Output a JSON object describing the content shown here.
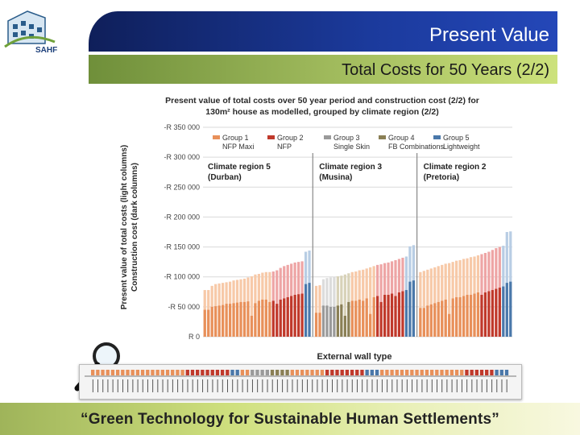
{
  "slide": {
    "title": "Present Value",
    "subtitle": "Total Costs for 50 Years (2/2)",
    "footer": "“Green Technology for Sustainable Human Settlements”",
    "logo_text": "SAHF"
  },
  "colors": {
    "group1_light": "#f7c9a8",
    "group1_dark": "#e8905a",
    "group2_light": "#eea5a5",
    "group2_dark": "#c0392b",
    "group3_light": "#dcdcdc",
    "group3_dark": "#9a9a9a",
    "group4_light": "#d8d2b8",
    "group4_dark": "#8a7f55",
    "group5_light": "#b8cde4",
    "group5_dark": "#4a78aa"
  },
  "chart_data": {
    "type": "bar",
    "title": "Present value of total costs over 50 year period and construction cost (2/2) for 130m² house as modelled, grouped by climate region (2/2)",
    "title_lines": [
      "Present value of total costs over 50 year period and construction cost (2/2) for",
      "130m² house as modelled, grouped by climate region (2/2)"
    ],
    "xlabel": "External wall type",
    "ylabel_lines": [
      "Present value of total costs (light columns)",
      "Construction cost (dark columns)"
    ],
    "ylim": [
      0,
      350000
    ],
    "yticks": [
      {
        "value": 0,
        "label": "R 0"
      },
      {
        "value": 50000,
        "label": "-R 50 000"
      },
      {
        "value": 100000,
        "label": "-R 100 000"
      },
      {
        "value": 150000,
        "label": "-R 150 000"
      },
      {
        "value": 200000,
        "label": "-R 200 000"
      },
      {
        "value": 250000,
        "label": "-R 250 000"
      },
      {
        "value": 300000,
        "label": "-R 300 000"
      },
      {
        "value": 350000,
        "label": "-R 350 000"
      }
    ],
    "grid": true,
    "legend_placement": "top-left",
    "legend": [
      {
        "group": 1,
        "name": "Group 1",
        "sub": "NFP Maxi"
      },
      {
        "group": 2,
        "name": "Group 2",
        "sub": "NFP"
      },
      {
        "group": 3,
        "name": "Group 3",
        "sub": "Single Skin"
      },
      {
        "group": 4,
        "name": "Group 4",
        "sub": "FB Combinations"
      },
      {
        "group": 5,
        "name": "Group 5",
        "sub": "Lightweight"
      }
    ],
    "regions": [
      {
        "name": "Climate region 5",
        "city": "(Durban)",
        "groups": [
          1,
          1,
          1,
          1,
          1,
          1,
          1,
          1,
          1,
          1,
          1,
          1,
          1,
          1,
          1,
          1,
          1,
          1,
          1,
          2,
          2,
          2,
          2,
          2,
          2,
          2,
          2,
          2,
          5,
          5
        ],
        "total": [
          78000,
          78000,
          85000,
          88000,
          89000,
          90000,
          91000,
          92000,
          94000,
          95000,
          96000,
          97000,
          99000,
          101000,
          104000,
          105000,
          107000,
          108000,
          108000,
          109000,
          111000,
          115000,
          118000,
          120000,
          122000,
          124000,
          125000,
          126000,
          142000,
          144000
        ],
        "construction": [
          45000,
          45000,
          50000,
          51000,
          52000,
          53000,
          55000,
          55000,
          56000,
          57000,
          58000,
          58000,
          59000,
          35000,
          56000,
          60000,
          62000,
          62000,
          58000,
          60000,
          55000,
          62000,
          64000,
          66000,
          68000,
          70000,
          71000,
          72000,
          88000,
          90000
        ]
      },
      {
        "name": "Climate region 3",
        "city": "(Musina)",
        "groups": [
          1,
          1,
          3,
          3,
          3,
          3,
          4,
          4,
          4,
          4,
          1,
          1,
          1,
          1,
          1,
          1,
          1,
          2,
          2,
          2,
          2,
          2,
          2,
          2,
          2,
          5,
          5,
          5
        ],
        "total": [
          85000,
          86000,
          96000,
          98000,
          99000,
          100000,
          101000,
          102000,
          104000,
          106000,
          108000,
          109000,
          111000,
          112000,
          114000,
          116000,
          118000,
          120000,
          121000,
          123000,
          124000,
          126000,
          128000,
          130000,
          132000,
          134000,
          151000,
          153000
        ],
        "construction": [
          40000,
          40000,
          52000,
          52000,
          50000,
          50000,
          52000,
          54000,
          35000,
          58000,
          60000,
          60000,
          62000,
          60000,
          64000,
          38000,
          66000,
          68000,
          58000,
          70000,
          70000,
          72000,
          68000,
          74000,
          76000,
          78000,
          92000,
          94000
        ]
      },
      {
        "name": "Climate region 2",
        "city": "(Pretoria)",
        "groups": [
          1,
          1,
          1,
          1,
          1,
          1,
          1,
          1,
          1,
          1,
          1,
          1,
          1,
          1,
          1,
          1,
          1,
          2,
          2,
          2,
          2,
          2,
          2,
          5,
          5,
          5
        ],
        "total": [
          108000,
          110000,
          112000,
          114000,
          116000,
          118000,
          120000,
          122000,
          123000,
          125000,
          127000,
          128000,
          130000,
          131000,
          133000,
          134000,
          136000,
          138000,
          140000,
          142000,
          145000,
          148000,
          150000,
          152000,
          175000,
          176000
        ],
        "construction": [
          48000,
          48000,
          52000,
          54000,
          56000,
          58000,
          60000,
          62000,
          38000,
          64000,
          66000,
          66000,
          68000,
          70000,
          70000,
          72000,
          74000,
          70000,
          74000,
          76000,
          78000,
          80000,
          82000,
          84000,
          90000,
          92000
        ]
      }
    ]
  }
}
